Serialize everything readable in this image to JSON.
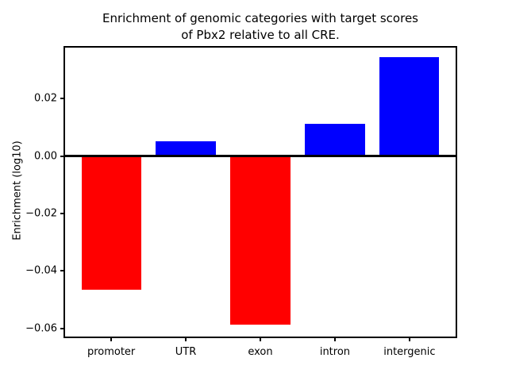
{
  "figure": {
    "background": "#ffffff",
    "text_color": "#000000"
  },
  "chart_data": {
    "type": "bar",
    "title": "Enrichment of genomic categories with target scores\nof Pbx2 relative to all CRE.",
    "ylabel": "Enrichment (log10)",
    "xlabel": "",
    "categories": [
      "promoter",
      "UTR",
      "exon",
      "intron",
      "intergenic"
    ],
    "values": [
      -0.0465,
      0.0051,
      -0.0587,
      0.0111,
      0.0343
    ],
    "bar_colors": [
      "#ff0000",
      "#0000ff",
      "#ff0000",
      "#0000ff",
      "#0000ff"
    ],
    "positive_color": "#0000ff",
    "negative_color": "#ff0000",
    "ylim": [
      -0.0634,
      0.0383
    ],
    "xlim": [
      -0.64,
      4.64
    ],
    "bar_width": 0.8,
    "yticks": [
      {
        "label": "0.02",
        "value": 0.02
      },
      {
        "label": "0.00",
        "value": 0.0
      },
      {
        "label": "−0.02",
        "value": -0.02
      },
      {
        "label": "−0.04",
        "value": -0.04
      },
      {
        "label": "−0.06",
        "value": -0.06
      }
    ],
    "zero_line": true,
    "grid": false,
    "legend": null
  }
}
